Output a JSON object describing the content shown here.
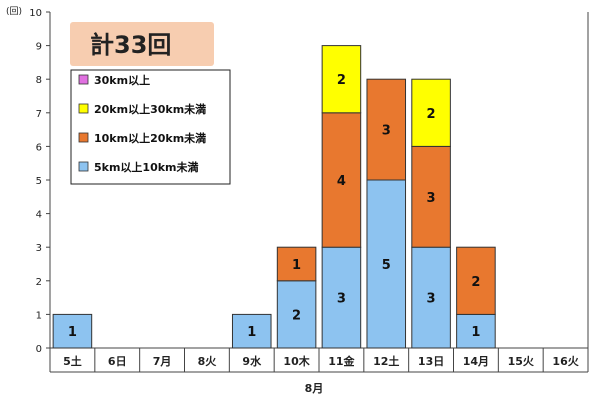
{
  "chart_data": {
    "type": "bar",
    "stacked": true,
    "title": "",
    "total_badge": "計33回",
    "ylabel": "(回)",
    "xlabel": "8月",
    "ylim": [
      0,
      10
    ],
    "yticks": [
      0,
      1,
      2,
      3,
      4,
      5,
      6,
      7,
      8,
      9,
      10
    ],
    "grid": false,
    "legend_position": "top-left",
    "categories": [
      "5土",
      "6日",
      "7月",
      "8火",
      "9水",
      "10木",
      "11金",
      "12土",
      "13日",
      "14月",
      "15火",
      "16火"
    ],
    "series": [
      {
        "name": "5km以上10km未満",
        "color": "#8DC3F0",
        "values": [
          1,
          0,
          0,
          0,
          1,
          2,
          3,
          5,
          3,
          1,
          0,
          0
        ]
      },
      {
        "name": "10km以上20km未満",
        "color": "#E8782F",
        "values": [
          0,
          0,
          0,
          0,
          0,
          1,
          4,
          3,
          3,
          2,
          0,
          0
        ]
      },
      {
        "name": "20km以上30km未満",
        "color": "#FFFF00",
        "values": [
          0,
          0,
          0,
          0,
          0,
          0,
          2,
          0,
          2,
          0,
          0,
          0
        ]
      },
      {
        "name": "30km以上",
        "color": "#E070E0",
        "values": [
          0,
          0,
          0,
          0,
          0,
          0,
          0,
          0,
          0,
          0,
          0,
          0
        ]
      }
    ],
    "badge_color": "#F7CDB0"
  }
}
